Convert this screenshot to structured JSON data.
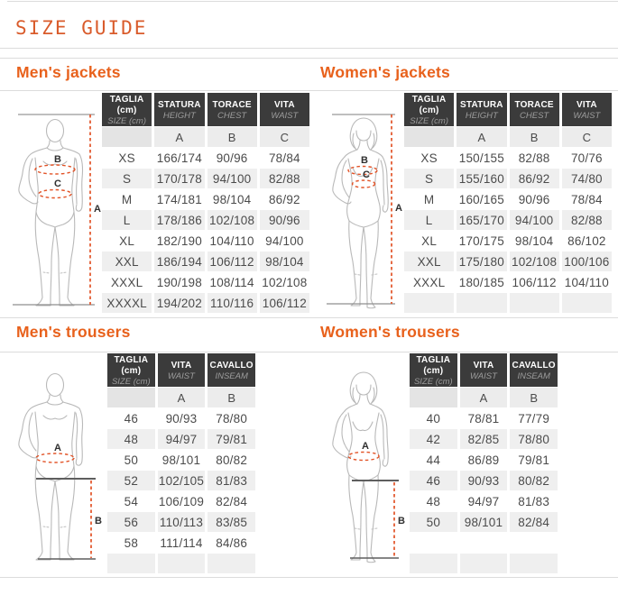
{
  "page": {
    "title": "SIZE GUIDE"
  },
  "figures": {
    "jacket": {
      "height_label": "A",
      "chest_label": "B",
      "waist_label": "C"
    },
    "trousers": {
      "waist_label": "A",
      "inseam_label": "B"
    }
  },
  "sections": {
    "mens_jackets": {
      "heading": "Men's jackets",
      "table": {
        "headers": [
          {
            "main": "TAGLIA (cm)",
            "sub": "SIZE (cm)"
          },
          {
            "main": "STATURA",
            "sub": "HEIGHT"
          },
          {
            "main": "TORACE",
            "sub": "CHEST"
          },
          {
            "main": "VITA",
            "sub": "WAIST"
          }
        ],
        "letters": [
          "",
          "A",
          "B",
          "C"
        ],
        "rows": [
          [
            "XS",
            "166/174",
            "90/96",
            "78/84"
          ],
          [
            "S",
            "170/178",
            "94/100",
            "82/88"
          ],
          [
            "M",
            "174/181",
            "98/104",
            "86/92"
          ],
          [
            "L",
            "178/186",
            "102/108",
            "90/96"
          ],
          [
            "XL",
            "182/190",
            "104/110",
            "94/100"
          ],
          [
            "XXL",
            "186/194",
            "106/112",
            "98/104"
          ],
          [
            "XXXL",
            "190/198",
            "108/114",
            "102/108"
          ],
          [
            "XXXXL",
            "194/202",
            "110/116",
            "106/112"
          ]
        ]
      }
    },
    "womens_jackets": {
      "heading": "Women's jackets",
      "table": {
        "headers": [
          {
            "main": "TAGLIA (cm)",
            "sub": "SIZE (cm)"
          },
          {
            "main": "STATURA",
            "sub": "HEIGHT"
          },
          {
            "main": "TORACE",
            "sub": "CHEST"
          },
          {
            "main": "VITA",
            "sub": "WAIST"
          }
        ],
        "letters": [
          "",
          "A",
          "B",
          "C"
        ],
        "rows": [
          [
            "XS",
            "150/155",
            "82/88",
            "70/76"
          ],
          [
            "S",
            "155/160",
            "86/92",
            "74/80"
          ],
          [
            "M",
            "160/165",
            "90/96",
            "78/84"
          ],
          [
            "L",
            "165/170",
            "94/100",
            "82/88"
          ],
          [
            "XL",
            "170/175",
            "98/104",
            "86/102"
          ],
          [
            "XXL",
            "175/180",
            "102/108",
            "100/106"
          ],
          [
            "XXXL",
            "180/185",
            "106/112",
            "104/110"
          ],
          [
            "",
            "",
            "",
            ""
          ]
        ]
      }
    },
    "mens_trousers": {
      "heading": "Men's trousers",
      "table": {
        "headers": [
          {
            "main": "TAGLIA (cm)",
            "sub": "SIZE (cm)"
          },
          {
            "main": "VITA",
            "sub": "WAIST"
          },
          {
            "main": "CAVALLO",
            "sub": "INSEAM"
          }
        ],
        "letters": [
          "",
          "A",
          "B"
        ],
        "rows": [
          [
            "46",
            "90/93",
            "78/80"
          ],
          [
            "48",
            "94/97",
            "79/81"
          ],
          [
            "50",
            "98/101",
            "80/82"
          ],
          [
            "52",
            "102/105",
            "81/83"
          ],
          [
            "54",
            "106/109",
            "82/84"
          ],
          [
            "56",
            "110/113",
            "83/85"
          ],
          [
            "58",
            "111/114",
            "84/86"
          ],
          [
            "",
            "",
            ""
          ]
        ]
      }
    },
    "womens_trousers": {
      "heading": "Women's trousers",
      "table": {
        "headers": [
          {
            "main": "TAGLIA (cm)",
            "sub": "SIZE (cm)"
          },
          {
            "main": "VITA",
            "sub": "WAIST"
          },
          {
            "main": "CAVALLO",
            "sub": "INSEAM"
          }
        ],
        "letters": [
          "",
          "A",
          "B"
        ],
        "rows": [
          [
            "40",
            "78/81",
            "77/79"
          ],
          [
            "42",
            "82/85",
            "78/80"
          ],
          [
            "44",
            "86/89",
            "79/81"
          ],
          [
            "46",
            "90/93",
            "80/82"
          ],
          [
            "48",
            "94/97",
            "81/83"
          ],
          [
            "50",
            "98/101",
            "82/84"
          ],
          [
            "",
            "",
            ""
          ],
          [
            "",
            "",
            ""
          ]
        ]
      }
    }
  }
}
